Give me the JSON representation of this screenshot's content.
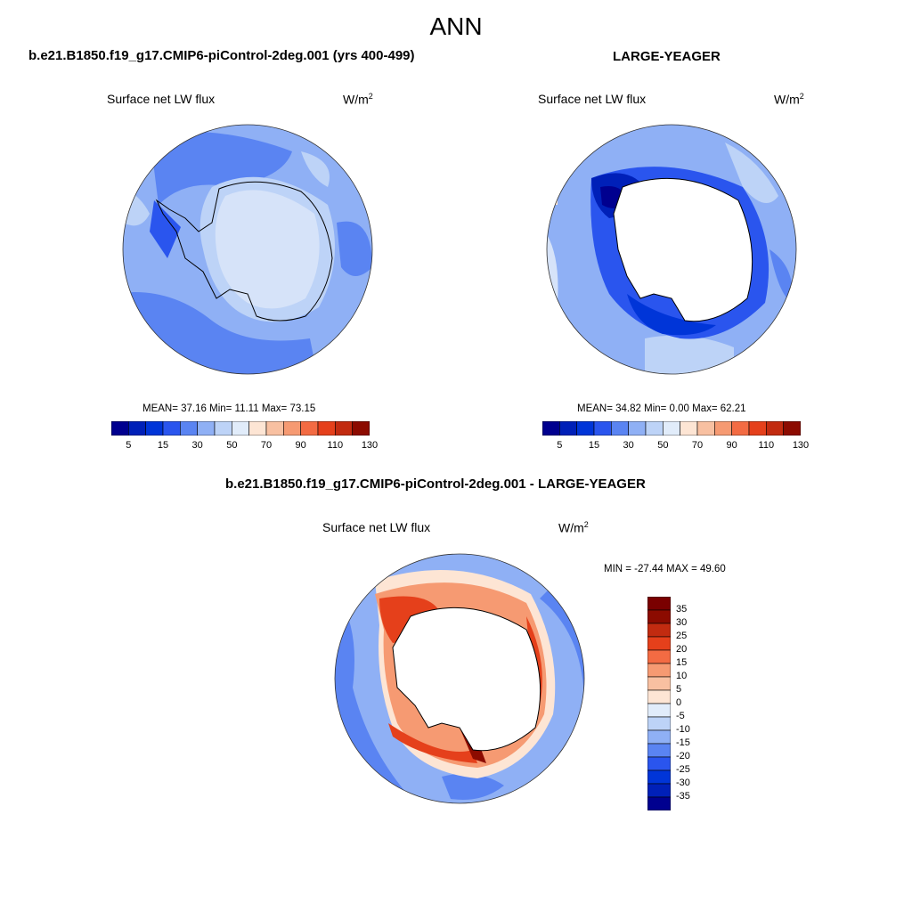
{
  "page": {
    "title": "ANN"
  },
  "panels": {
    "left": {
      "case": "b.e21.B1850.f19_g17.CMIP6-piControl-2deg.001 (yrs 400-499)",
      "variable": "Surface net LW flux",
      "units": "W/m",
      "units_exp": "2",
      "stats": "MEAN=  37.16  Min=  11.11  Max=  73.15"
    },
    "right": {
      "case": "LARGE-YEAGER",
      "variable": "Surface net LW flux",
      "units": "W/m",
      "units_exp": "2",
      "stats": "MEAN=  34.82  Min=   0.00  Max=  62.21"
    },
    "diff": {
      "case": "b.e21.B1850.f19_g17.CMIP6-piControl-2deg.001 - LARGE-YEAGER",
      "variable": "Surface net LW flux",
      "units": "W/m",
      "units_exp": "2",
      "stats": "MIN = -27.44 MAX =  49.60"
    }
  },
  "colorbar_abs": {
    "colors": [
      "#00008f",
      "#0020b8",
      "#0035d8",
      "#2a55ee",
      "#5a84f2",
      "#8fb0f5",
      "#bdd3f7",
      "#e1ecfa",
      "#fde5d4",
      "#f8c0a1",
      "#f69a72",
      "#f36b43",
      "#e5401b",
      "#c22b10",
      "#8c0b00"
    ],
    "labels": [
      "5",
      "15",
      "30",
      "50",
      "70",
      "90",
      "110",
      "130"
    ]
  },
  "colorbar_diff": {
    "colors": [
      "#00008f",
      "#0020b8",
      "#0035d8",
      "#2a55ee",
      "#5a84f2",
      "#8fb0f5",
      "#bdd3f7",
      "#e1ecfa",
      "#fde5d4",
      "#f8c0a1",
      "#f69a72",
      "#f36b43",
      "#e5401b",
      "#c22b10",
      "#8c0b00",
      "#7a0000"
    ],
    "labels": [
      "35",
      "30",
      "25",
      "20",
      "15",
      "10",
      "5",
      "0",
      "-5",
      "-10",
      "-15",
      "-20",
      "-25",
      "-30",
      "-35"
    ]
  }
}
